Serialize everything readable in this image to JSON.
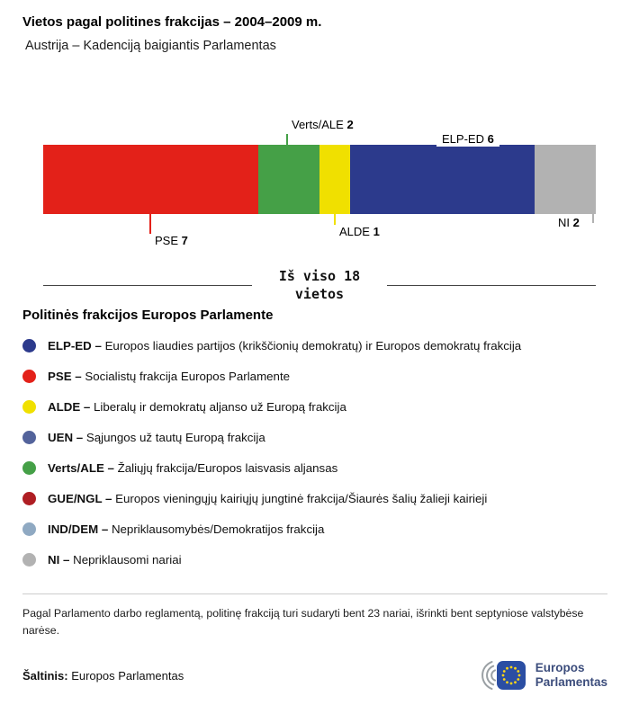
{
  "header": {
    "title": "Vietos pagal politines frakcijas – 2004–2009 m.",
    "subtitle": "Austrija – Kadenciją baigiantis Parlamentas"
  },
  "chart_data": {
    "type": "bar",
    "orientation": "horizontal-stacked",
    "title": "Vietos pagal politines frakcijas – 2004–2009 m.",
    "subtitle": "Austrija – Kadenciją baigiantis Parlamentas",
    "total": 18,
    "total_label": {
      "line1": "Iš viso 18",
      "line2": "vietos"
    },
    "segments": [
      {
        "name": "PSE",
        "value": 7,
        "color": "#e32119",
        "label_position": "below"
      },
      {
        "name": "Verts/ALE",
        "value": 2,
        "color": "#45a047",
        "label_position": "above"
      },
      {
        "name": "ALDE",
        "value": 1,
        "color": "#f0e000",
        "label_position": "below"
      },
      {
        "name": "ELP-ED",
        "value": 6,
        "color": "#2c3a8c",
        "label_position": "above"
      },
      {
        "name": "NI",
        "value": 2,
        "color": "#b2b2b2",
        "label_position": "below"
      }
    ]
  },
  "legend": {
    "title": "Politinės frakcijos Europos Parlamente",
    "items": [
      {
        "name": "ELP-ED –",
        "description": "Europos liaudies partijos (krikščionių demokratų) ir Europos demokratų frakcija",
        "color": "#2c3a8c"
      },
      {
        "name": "PSE –",
        "description": "Socialistų frakcija Europos Parlamente",
        "color": "#e32119"
      },
      {
        "name": "ALDE –",
        "description": "Liberalų ir demokratų aljanso už Europą frakcija",
        "color": "#f0e000"
      },
      {
        "name": "UEN –",
        "description": "Sąjungos už tautų Europą frakcija",
        "color": "#53639b"
      },
      {
        "name": "Verts/ALE –",
        "description": "Žaliųjų frakcija/Europos laisvasis aljansas",
        "color": "#45a047"
      },
      {
        "name": "GUE/NGL –",
        "description": "Europos vieningųjų kairiųjų jungtinė frakcija/Šiaurės šalių žalieji kairieji",
        "color": "#af1e23"
      },
      {
        "name": "IND/DEM –",
        "description": "Nepriklausomybės/Demokratijos frakcija",
        "color": "#8fa9c2"
      },
      {
        "name": "NI –",
        "description": "Nepriklausomi nariai",
        "color": "#b2b2b2"
      }
    ]
  },
  "footer": {
    "note": "Pagal Parlamento darbo reglamentą, politinę frakciją turi sudaryti bent 23 nariai, išrinkti bent septyniose valstybėse narėse.",
    "source_label": "Šaltinis:",
    "source_value": "Europos Parlamentas",
    "logo": {
      "line1": "Europos",
      "line2": "Parlamentas"
    }
  },
  "theme": {
    "logo-text": "#3c4d7c",
    "flag-blue": "#2b4ea3",
    "star-yellow": "#ffd617",
    "arc-gray": "#9aa0a4",
    "total-line": "#444444",
    "divider": "#cccccc"
  }
}
